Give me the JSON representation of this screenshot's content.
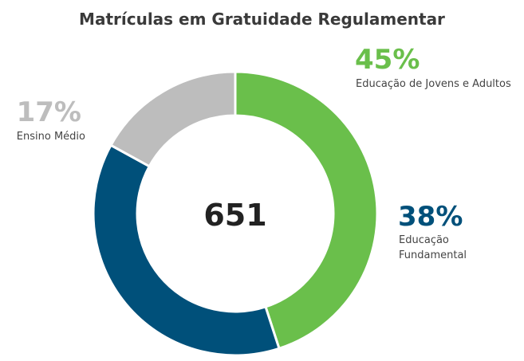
{
  "chart_data": {
    "type": "donut",
    "title": "Matrículas em Gratuidade Regulamentar",
    "total": 651,
    "categories": [
      "Educação de Jovens e Adultos",
      "Educação Fundamental",
      "Ensino Médio"
    ],
    "values": [
      45,
      38,
      17
    ],
    "value_labels": [
      "45%",
      "38%",
      "17%"
    ],
    "colors": [
      "#6abf4b",
      "#00507a",
      "#bdbdbd"
    ]
  }
}
